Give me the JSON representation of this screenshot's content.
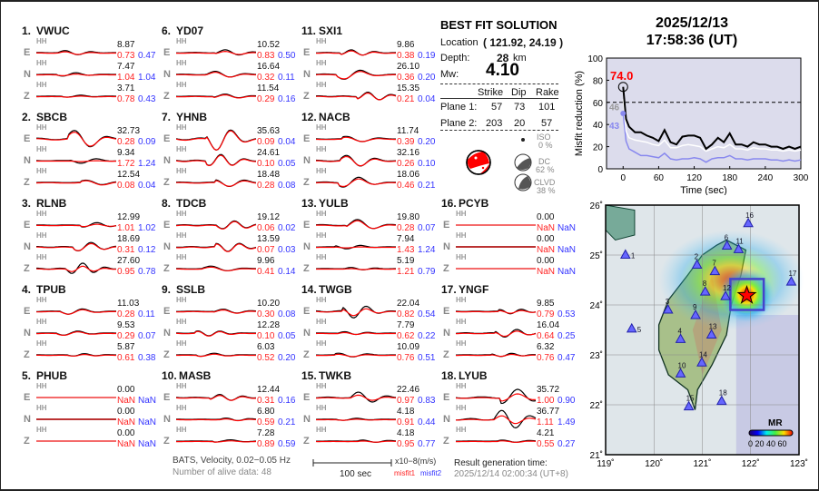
{
  "stations": [
    {
      "num": "1.",
      "name": "VWUC",
      "comps": [
        {
          "c": "E",
          "hh": "HH",
          "amp": "8.87",
          "m1": "0.73",
          "m2": "0.47"
        },
        {
          "c": "N",
          "hh": "HH",
          "amp": "7.47",
          "m1": "1.04",
          "m2": "1.04"
        },
        {
          "c": "Z",
          "hh": "HH",
          "amp": "3.71",
          "m1": "0.78",
          "m2": "0.43"
        }
      ]
    },
    {
      "num": "2.",
      "name": "SBCB",
      "comps": [
        {
          "c": "E",
          "hh": "HH",
          "amp": "32.73",
          "m1": "0.28",
          "m2": "0.09"
        },
        {
          "c": "N",
          "hh": "HH",
          "amp": "9.34",
          "m1": "1.72",
          "m2": "1.24"
        },
        {
          "c": "Z",
          "hh": "HH",
          "amp": "12.54",
          "m1": "0.08",
          "m2": "0.04"
        }
      ]
    },
    {
      "num": "3.",
      "name": "RLNB",
      "comps": [
        {
          "c": "E",
          "hh": "HH",
          "amp": "12.99",
          "m1": "1.01",
          "m2": "1.02"
        },
        {
          "c": "N",
          "hh": "HH",
          "amp": "18.69",
          "m1": "0.31",
          "m2": "0.12"
        },
        {
          "c": "Z",
          "hh": "HH",
          "amp": "27.60",
          "m1": "0.95",
          "m2": "0.78"
        }
      ]
    },
    {
      "num": "4.",
      "name": "TPUB",
      "comps": [
        {
          "c": "E",
          "hh": "HH",
          "amp": "11.03",
          "m1": "0.28",
          "m2": "0.11"
        },
        {
          "c": "N",
          "hh": "HH",
          "amp": "9.53",
          "m1": "0.29",
          "m2": "0.07"
        },
        {
          "c": "Z",
          "hh": "HH",
          "amp": "5.87",
          "m1": "0.61",
          "m2": "0.38"
        }
      ]
    },
    {
      "num": "5.",
      "name": "PHUB",
      "comps": [
        {
          "c": "E",
          "hh": "HH",
          "amp": "0.00",
          "m1": "NaN",
          "m2": "NaN"
        },
        {
          "c": "N",
          "hh": "HH",
          "amp": "0.00",
          "m1": "NaN",
          "m2": "NaN"
        },
        {
          "c": "Z",
          "hh": "HH",
          "amp": "0.00",
          "m1": "NaN",
          "m2": "NaN"
        }
      ]
    },
    {
      "num": "6.",
      "name": "YD07",
      "comps": [
        {
          "c": "E",
          "hh": "HH",
          "amp": "10.52",
          "m1": "0.83",
          "m2": "0.50"
        },
        {
          "c": "N",
          "hh": "HH",
          "amp": "16.64",
          "m1": "0.32",
          "m2": "0.11"
        },
        {
          "c": "Z",
          "hh": "HH",
          "amp": "11.54",
          "m1": "0.29",
          "m2": "0.16"
        }
      ]
    },
    {
      "num": "7.",
      "name": "YHNB",
      "comps": [
        {
          "c": "E",
          "hh": "HH",
          "amp": "35.63",
          "m1": "0.09",
          "m2": "0.04"
        },
        {
          "c": "N",
          "hh": "HH",
          "amp": "24.61",
          "m1": "0.10",
          "m2": "0.05"
        },
        {
          "c": "Z",
          "hh": "HH",
          "amp": "18.48",
          "m1": "0.28",
          "m2": "0.08"
        }
      ]
    },
    {
      "num": "8.",
      "name": "TDCB",
      "comps": [
        {
          "c": "E",
          "hh": "HH",
          "amp": "19.12",
          "m1": "0.06",
          "m2": "0.02"
        },
        {
          "c": "N",
          "hh": "HH",
          "amp": "13.59",
          "m1": "0.07",
          "m2": "0.03"
        },
        {
          "c": "Z",
          "hh": "HH",
          "amp": "9.96",
          "m1": "0.41",
          "m2": "0.14"
        }
      ]
    },
    {
      "num": "9.",
      "name": "SSLB",
      "comps": [
        {
          "c": "E",
          "hh": "HH",
          "amp": "10.20",
          "m1": "0.30",
          "m2": "0.08"
        },
        {
          "c": "N",
          "hh": "HH",
          "amp": "12.28",
          "m1": "0.10",
          "m2": "0.05"
        },
        {
          "c": "Z",
          "hh": "HH",
          "amp": "6.03",
          "m1": "0.52",
          "m2": "0.20"
        }
      ]
    },
    {
      "num": "10.",
      "name": "MASB",
      "comps": [
        {
          "c": "E",
          "hh": "HH",
          "amp": "12.44",
          "m1": "0.31",
          "m2": "0.16"
        },
        {
          "c": "N",
          "hh": "HH",
          "amp": "6.80",
          "m1": "0.59",
          "m2": "0.21"
        },
        {
          "c": "Z",
          "hh": "HH",
          "amp": "7.28",
          "m1": "0.89",
          "m2": "0.59"
        }
      ]
    },
    {
      "num": "11.",
      "name": "SXI1",
      "comps": [
        {
          "c": "E",
          "hh": "HH",
          "amp": "9.86",
          "m1": "0.38",
          "m2": "0.19"
        },
        {
          "c": "N",
          "hh": "HH",
          "amp": "26.10",
          "m1": "0.36",
          "m2": "0.20"
        },
        {
          "c": "Z",
          "hh": "HH",
          "amp": "15.35",
          "m1": "0.21",
          "m2": "0.04"
        }
      ]
    },
    {
      "num": "12.",
      "name": "NACB",
      "comps": [
        {
          "c": "E",
          "hh": "HH",
          "amp": "11.74",
          "m1": "0.39",
          "m2": "0.20"
        },
        {
          "c": "N",
          "hh": "HH",
          "amp": "32.16",
          "m1": "0.26",
          "m2": "0.10"
        },
        {
          "c": "Z",
          "hh": "HH",
          "amp": "18.06",
          "m1": "0.46",
          "m2": "0.21"
        }
      ]
    },
    {
      "num": "13.",
      "name": "YULB",
      "comps": [
        {
          "c": "E",
          "hh": "HH",
          "amp": "19.80",
          "m1": "0.28",
          "m2": "0.07"
        },
        {
          "c": "N",
          "hh": "HH",
          "amp": "7.94",
          "m1": "1.43",
          "m2": "1.24"
        },
        {
          "c": "Z",
          "hh": "HH",
          "amp": "5.19",
          "m1": "1.21",
          "m2": "0.79"
        }
      ]
    },
    {
      "num": "14.",
      "name": "TWGB",
      "comps": [
        {
          "c": "E",
          "hh": "HH",
          "amp": "22.04",
          "m1": "0.82",
          "m2": "0.54"
        },
        {
          "c": "N",
          "hh": "HH",
          "amp": "7.79",
          "m1": "0.62",
          "m2": "0.22"
        },
        {
          "c": "Z",
          "hh": "HH",
          "amp": "10.09",
          "m1": "0.76",
          "m2": "0.51"
        }
      ]
    },
    {
      "num": "15.",
      "name": "TWKB",
      "comps": [
        {
          "c": "E",
          "hh": "HH",
          "amp": "22.46",
          "m1": "0.97",
          "m2": "0.83"
        },
        {
          "c": "N",
          "hh": "HH",
          "amp": "4.18",
          "m1": "0.91",
          "m2": "0.44"
        },
        {
          "c": "Z",
          "hh": "HH",
          "amp": "4.18",
          "m1": "0.95",
          "m2": "0.77"
        }
      ]
    },
    {
      "num": "16.",
      "name": "PCYB",
      "comps": [
        {
          "c": "E",
          "hh": "HH",
          "amp": "0.00",
          "m1": "NaN",
          "m2": "NaN"
        },
        {
          "c": "N",
          "hh": "HH",
          "amp": "0.00",
          "m1": "NaN",
          "m2": "NaN"
        },
        {
          "c": "Z",
          "hh": "HH",
          "amp": "0.00",
          "m1": "NaN",
          "m2": "NaN"
        }
      ]
    },
    {
      "num": "17.",
      "name": "YNGF",
      "comps": [
        {
          "c": "E",
          "hh": "HH",
          "amp": "9.85",
          "m1": "0.79",
          "m2": "0.53"
        },
        {
          "c": "N",
          "hh": "HH",
          "amp": "16.04",
          "m1": "0.64",
          "m2": "0.25"
        },
        {
          "c": "Z",
          "hh": "HH",
          "amp": "6.32",
          "m1": "0.76",
          "m2": "0.47"
        }
      ]
    },
    {
      "num": "18.",
      "name": "LYUB",
      "comps": [
        {
          "c": "E",
          "hh": "HH",
          "amp": "35.72",
          "m1": "1.00",
          "m2": "0.90"
        },
        {
          "c": "N",
          "hh": "HH",
          "amp": "36.77",
          "m1": "1.11",
          "m2": "1.49"
        },
        {
          "c": "Z",
          "hh": "HH",
          "amp": "4.21",
          "m1": "0.55",
          "m2": "0.27"
        }
      ]
    }
  ],
  "footer": {
    "info": "BATS, Velocity, 0.02−0.05 Hz",
    "alive": "Number of alive data: 48",
    "scale_label": "100 sec",
    "units": "x10−8(m/s)",
    "misfit1": "misfit1",
    "misfit2": "misfit2",
    "gen_label": "Result generation time:",
    "gen_time": "2025/12/14 02:00:34 (UT+8)"
  },
  "solution": {
    "title": "BEST FIT SOLUTION",
    "location_label": "Location",
    "location": "( 121.92,  24.19 )",
    "depth_label": "Depth:",
    "depth": "28",
    "depth_unit": "km",
    "mw_label": "Mw:",
    "mw": "4.10",
    "headers": [
      "Strike",
      "Dip",
      "Rake"
    ],
    "planes": [
      {
        "label": "Plane 1:",
        "values": [
          "57",
          "73",
          "101"
        ]
      },
      {
        "label": "Plane 2:",
        "values": [
          "203",
          "20",
          "57"
        ]
      }
    ],
    "iso_label": "ISO",
    "iso": "0  %",
    "dc_label": "DC",
    "dc": "62 %",
    "clvd_label": "CLVD",
    "clvd": "38 %"
  },
  "event": {
    "date": "2025/12/13",
    "time": "17:58:36  (UT)"
  },
  "colors": {
    "observed": "#000000",
    "synthetic": "#ff0000",
    "misfit1": "#ff2222",
    "misfit2": "#3333ff",
    "chart_bg": "#dcdcec"
  },
  "chart_data": {
    "type": "line",
    "xlabel": "Time (sec)",
    "ylabel": "Misfit reduction (%)",
    "xlim": [
      -28,
      300
    ],
    "ylim": [
      0,
      100
    ],
    "xticks": [
      "0",
      "60",
      "120",
      "180",
      "240",
      "300"
    ],
    "yticks": [
      "0",
      "20",
      "40",
      "60",
      "80",
      "100"
    ],
    "threshold": 60,
    "best_label": "74.0",
    "white_label": "46",
    "blue_label": "43",
    "x": [
      0,
      5,
      10,
      20,
      30,
      40,
      50,
      60,
      70,
      80,
      90,
      100,
      110,
      120,
      130,
      140,
      150,
      160,
      170,
      180,
      190,
      200,
      210,
      220,
      230,
      240,
      250,
      260,
      270,
      280,
      290,
      300
    ],
    "series": [
      {
        "color": "#000000",
        "values": [
          74,
          45,
          38,
          33,
          33,
          30,
          28,
          25,
          35,
          24,
          22,
          29,
          30,
          30,
          28,
          18,
          22,
          28,
          24,
          32,
          22,
          22,
          20,
          24,
          22,
          22,
          20,
          20,
          18,
          20,
          18,
          20
        ]
      },
      {
        "color": "#ffffff",
        "values": [
          63,
          34,
          28,
          26,
          25,
          24,
          22,
          21,
          26,
          19,
          19,
          21,
          22,
          21,
          20,
          16,
          18,
          20,
          19,
          22,
          18,
          18,
          17,
          19,
          18,
          18,
          17,
          17,
          16,
          17,
          16,
          17
        ]
      },
      {
        "color": "#8888ee",
        "values": [
          50,
          25,
          18,
          15,
          12,
          12,
          11,
          10,
          14,
          9,
          8,
          9,
          9,
          10,
          9,
          6,
          9,
          10,
          10,
          12,
          9,
          9,
          8,
          9,
          9,
          9,
          8,
          8,
          7,
          8,
          7,
          8
        ]
      }
    ]
  },
  "map": {
    "lon_ticks": [
      "119˚",
      "120˚",
      "121˚",
      "122˚",
      "123˚"
    ],
    "lat_ticks": [
      "21˚",
      "22˚",
      "23˚",
      "24˚",
      "25˚",
      "26˚"
    ],
    "colorbar_title": "MR",
    "colorbar_ticks": "0 20 40 60",
    "epicenter": {
      "lon": 121.92,
      "lat": 24.19
    },
    "stations": [
      {
        "id": "1",
        "lon": 119.41,
        "lat": 25.01
      },
      {
        "id": "2",
        "lon": 120.89,
        "lat": 24.81
      },
      {
        "id": "3",
        "lon": 120.29,
        "lat": 23.91
      },
      {
        "id": "4",
        "lon": 120.55,
        "lat": 23.32
      },
      {
        "id": "5",
        "lon": 119.54,
        "lat": 23.53
      },
      {
        "id": "6",
        "lon": 121.51,
        "lat": 25.19
      },
      {
        "id": "7",
        "lon": 121.26,
        "lat": 24.68
      },
      {
        "id": "8",
        "lon": 121.06,
        "lat": 24.27
      },
      {
        "id": "9",
        "lon": 120.86,
        "lat": 23.8
      },
      {
        "id": "10",
        "lon": 120.55,
        "lat": 22.63
      },
      {
        "id": "11",
        "lon": 121.75,
        "lat": 25.12
      },
      {
        "id": "12",
        "lon": 121.48,
        "lat": 24.18
      },
      {
        "id": "13",
        "lon": 121.19,
        "lat": 23.41
      },
      {
        "id": "14",
        "lon": 120.99,
        "lat": 22.85
      },
      {
        "id": "15",
        "lon": 120.72,
        "lat": 21.97
      },
      {
        "id": "16",
        "lon": 121.95,
        "lat": 25.64
      },
      {
        "id": "17",
        "lon": 122.84,
        "lat": 24.47
      },
      {
        "id": "18",
        "lon": 121.4,
        "lat": 22.08
      }
    ]
  }
}
